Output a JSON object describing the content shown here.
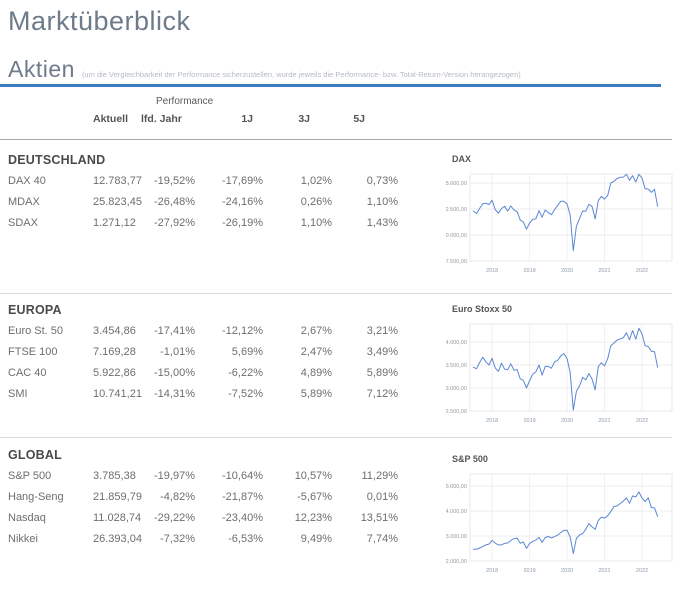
{
  "page": {
    "title": "Marktüberblick"
  },
  "section": {
    "title": "Aktien",
    "subtitle": "(um die Vergleichbarkeit der Performance sicherzustellen, wurde jeweils die Performance- bzw. Total-Return-Version herangezogen)",
    "accent_color": "#3d7cc1"
  },
  "table": {
    "group_header": "Performance",
    "columns": [
      "Aktuell",
      "lfd. Jahr",
      "1J",
      "3J",
      "5J"
    ],
    "sections": [
      {
        "title": "DEUTSCHLAND",
        "rows": [
          {
            "name": "DAX 40",
            "aktuell": "12.783,77",
            "ytd": "-19,52%",
            "y1": "-17,69%",
            "y3": "1,02%",
            "y5": "0,73%"
          },
          {
            "name": "MDAX",
            "aktuell": "25.823,45",
            "ytd": "-26,48%",
            "y1": "-24,16%",
            "y3": "0,26%",
            "y5": "1,10%"
          },
          {
            "name": "SDAX",
            "aktuell": "1.271,12",
            "ytd": "-27,92%",
            "y1": "-26,19%",
            "y3": "1,10%",
            "y5": "1,43%"
          }
        ]
      },
      {
        "title": "EUROPA",
        "rows": [
          {
            "name": "Euro St. 50",
            "aktuell": "3.454,86",
            "ytd": "-17,41%",
            "y1": "-12,12%",
            "y3": "2,67%",
            "y5": "3,21%"
          },
          {
            "name": "FTSE 100",
            "aktuell": "7.169,28",
            "ytd": "-1,01%",
            "y1": "5,69%",
            "y3": "2,47%",
            "y5": "3,49%"
          },
          {
            "name": "CAC 40",
            "aktuell": "5.922,86",
            "ytd": "-15,00%",
            "y1": "-6,22%",
            "y3": "4,89%",
            "y5": "5,89%"
          },
          {
            "name": "SMI",
            "aktuell": "10.741,21",
            "ytd": "-14,31%",
            "y1": "-7,52%",
            "y3": "5,89%",
            "y5": "7,12%"
          }
        ]
      },
      {
        "title": "GLOBAL",
        "rows": [
          {
            "name": "S&P 500",
            "aktuell": "3.785,38",
            "ytd": "-19,97%",
            "y1": "-10,64%",
            "y3": "10,57%",
            "y5": "11,29%"
          },
          {
            "name": "Hang-Seng",
            "aktuell": "21.859,79",
            "ytd": "-4,82%",
            "y1": "-21,87%",
            "y3": "-5,67%",
            "y5": "0,01%"
          },
          {
            "name": "Nasdaq",
            "aktuell": "11.028,74",
            "ytd": "-29,22%",
            "y1": "-23,40%",
            "y3": "12,23%",
            "y5": "13,51%"
          },
          {
            "name": "Nikkei",
            "aktuell": "26.393,04",
            "ytd": "-7,32%",
            "y1": "-6,53%",
            "y3": "9,49%",
            "y5": "7,74%"
          }
        ]
      }
    ]
  },
  "chart_data": [
    {
      "type": "line",
      "title": "DAX",
      "line_color": "#5b87d5",
      "grid": true,
      "x_start": 2017.5,
      "points_per_year": 12,
      "x_axis_range": [
        2017.41,
        2022.8
      ],
      "y_range": [
        7500,
        15865
      ],
      "y_ticks": [
        {
          "label": "15.000,00",
          "value": 15000
        },
        {
          "label": "12.500,00",
          "value": 12500
        },
        {
          "label": "10.000,00",
          "value": 10000
        },
        {
          "label": "7.500,00",
          "value": 7500
        }
      ],
      "x_ticks": [
        {
          "label": "2018",
          "value": 2018
        },
        {
          "label": "2019",
          "value": 2019
        },
        {
          "label": "2020",
          "value": 2020
        },
        {
          "label": "2021",
          "value": 2021
        },
        {
          "label": "2022",
          "value": 2022
        }
      ],
      "values": [
        12300,
        12060,
        12550,
        13000,
        13060,
        12920,
        13350,
        12450,
        12100,
        12550,
        12760,
        12300,
        12800,
        12400,
        12250,
        11450,
        11250,
        10560,
        11150,
        11500,
        11550,
        12350,
        11700,
        12400,
        12150,
        11950,
        12450,
        12850,
        13250,
        13250,
        12980,
        11900,
        8500,
        10850,
        11600,
        12310,
        12300,
        12950,
        12760,
        11550,
        13300,
        13720,
        13450,
        13800,
        15000,
        15150,
        15420,
        15550,
        15550,
        15850,
        15250,
        15700,
        15100,
        15840,
        15470,
        14450,
        14410,
        14100,
        14390,
        12780
      ]
    },
    {
      "type": "line",
      "title": "Euro Stoxx 50",
      "line_color": "#5b87d5",
      "grid": true,
      "x_start": 2017.5,
      "points_per_year": 12,
      "x_axis_range": [
        2017.41,
        2022.8
      ],
      "y_range": [
        2500,
        4391
      ],
      "y_ticks": [
        {
          "label": "4.000,00",
          "value": 4000
        },
        {
          "label": "3.500,00",
          "value": 3500
        },
        {
          "label": "3.000,00",
          "value": 3000
        },
        {
          "label": "2.500,00",
          "value": 2500
        }
      ],
      "x_ticks": [
        {
          "label": "2018",
          "value": 2018
        },
        {
          "label": "2019",
          "value": 2019
        },
        {
          "label": "2020",
          "value": 2020
        },
        {
          "label": "2021",
          "value": 2021
        },
        {
          "label": "2022",
          "value": 2022
        }
      ],
      "values": [
        3450,
        3420,
        3555,
        3670,
        3570,
        3500,
        3645,
        3440,
        3360,
        3540,
        3410,
        3395,
        3525,
        3390,
        3400,
        3200,
        3170,
        3000,
        3160,
        3300,
        3350,
        3500,
        3280,
        3470,
        3470,
        3430,
        3570,
        3600,
        3700,
        3745,
        3640,
        3330,
        2520,
        2930,
        3050,
        3230,
        3175,
        3315,
        3195,
        2960,
        3470,
        3550,
        3480,
        3640,
        3920,
        3975,
        4040,
        4065,
        4090,
        4200,
        4050,
        4250,
        4060,
        4300,
        4175,
        3920,
        3900,
        3800,
        3790,
        3455
      ]
    },
    {
      "type": "line",
      "title": "S&P 500",
      "line_color": "#5b87d5",
      "grid": true,
      "x_start": 2017.5,
      "points_per_year": 12,
      "x_axis_range": [
        2017.41,
        2022.8
      ],
      "y_range": [
        2000,
        5480
      ],
      "y_ticks": [
        {
          "label": "5.000,00",
          "value": 5000
        },
        {
          "label": "4.000,00",
          "value": 4000
        },
        {
          "label": "3.000,00",
          "value": 3000
        },
        {
          "label": "2.000,00",
          "value": 2000
        }
      ],
      "x_ticks": [
        {
          "label": "2018",
          "value": 2018
        },
        {
          "label": "2019",
          "value": 2019
        },
        {
          "label": "2020",
          "value": 2020
        },
        {
          "label": "2021",
          "value": 2021
        },
        {
          "label": "2022",
          "value": 2022
        }
      ],
      "values": [
        2470,
        2472,
        2520,
        2575,
        2650,
        2675,
        2825,
        2715,
        2640,
        2650,
        2705,
        2720,
        2815,
        2900,
        2915,
        2710,
        2760,
        2505,
        2705,
        2785,
        2835,
        2945,
        2750,
        2940,
        2980,
        2925,
        2975,
        3035,
        3140,
        3230,
        3225,
        2955,
        2300,
        2910,
        3045,
        3100,
        3270,
        3500,
        3365,
        3270,
        3620,
        3755,
        3715,
        3810,
        3975,
        4180,
        4200,
        4300,
        4395,
        4525,
        4310,
        4605,
        4565,
        4765,
        4515,
        4375,
        4530,
        4130,
        4130,
        3785
      ]
    }
  ]
}
